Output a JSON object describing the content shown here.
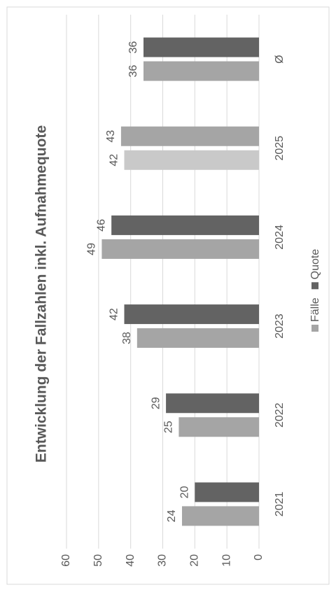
{
  "chart_data": {
    "type": "bar",
    "title": "Entwicklung der Fallzahlen inkl. Aufnahmequote",
    "categories": [
      "2021",
      "2022",
      "2023",
      "2024",
      "2025",
      "Ø"
    ],
    "series": [
      {
        "name": "Fälle",
        "color": "#a5a5a5",
        "colors": [
          "#a5a5a5",
          "#a5a5a5",
          "#a5a5a5",
          "#a5a5a5",
          "#c9c9c9",
          "#a5a5a5"
        ],
        "values": [
          24,
          25,
          38,
          49,
          42,
          36
        ]
      },
      {
        "name": "Quote",
        "color": "#636363",
        "colors": [
          "#636363",
          "#636363",
          "#636363",
          "#636363",
          "#a5a5a5",
          "#636363"
        ],
        "values": [
          20,
          29,
          42,
          46,
          43,
          36
        ]
      }
    ],
    "ylim": [
      0,
      60
    ],
    "yticks": [
      0,
      10,
      20,
      30,
      40,
      50,
      60
    ],
    "grid": true,
    "legend": "bottom",
    "orientation": "rotated-ccw"
  }
}
